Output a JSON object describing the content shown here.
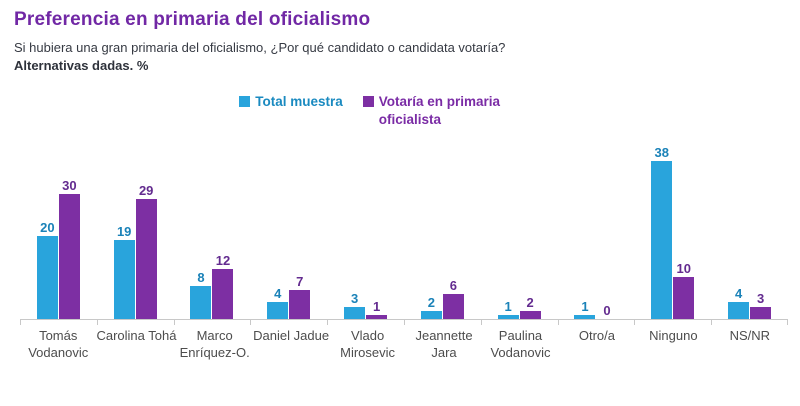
{
  "header": {
    "title": "Preferencia en primaria del oficialismo",
    "subtitle": "Si hubiera una gran primaria del oficialismo, ¿Por qué candidato o candidata votaría?",
    "note": "Alternativas dadas. %"
  },
  "legend": {
    "items": [
      {
        "label": "Total muestra",
        "color_key": "blue"
      },
      {
        "label": "Votaría en primaria oficialista",
        "color_key": "purple"
      }
    ]
  },
  "colors": {
    "title_purple": "#7128A5",
    "blue_bar": "#29A4DC",
    "blue_text": "#1A82B8",
    "purple_bar": "#7D2FA3",
    "purple_text": "#632B8F",
    "axis": "#C8C8C8",
    "subtitle_text": "#363A43",
    "category_text": "#4D4D4D"
  },
  "chart_data": {
    "type": "bar",
    "title": "Preferencia en primaria del oficialismo",
    "xlabel": "",
    "ylabel": "%",
    "ylim": [
      0,
      40
    ],
    "grid": false,
    "legend_position": "top-center",
    "value_labels": true,
    "categories": [
      "Tomás Vodanovic",
      "Carolina Tohá",
      "Marco Enríquez-O.",
      "Daniel Jadue",
      "Vlado Mirosevic",
      "Jeannette Jara",
      "Paulina Vodanovic",
      "Otro/a",
      "Ninguno",
      "NS/NR"
    ],
    "tick_labels": [
      [
        "Tomás",
        "Vodanovic"
      ],
      [
        "Carolina Tohá"
      ],
      [
        "Marco",
        "Enríquez-O."
      ],
      [
        "Daniel Jadue"
      ],
      [
        "Vlado",
        "Mirosevic"
      ],
      [
        "Jeannette",
        "Jara"
      ],
      [
        "Paulina",
        "Vodanovic"
      ],
      [
        "Otro/a"
      ],
      [
        "Ninguno"
      ],
      [
        "NS/NR"
      ]
    ],
    "series": [
      {
        "name": "Total muestra",
        "values": [
          20,
          19,
          8,
          4,
          3,
          2,
          1,
          1,
          38,
          4
        ]
      },
      {
        "name": "Votaría en primaria oficialista",
        "values": [
          30,
          29,
          12,
          7,
          1,
          6,
          2,
          0,
          10,
          3
        ]
      }
    ]
  }
}
